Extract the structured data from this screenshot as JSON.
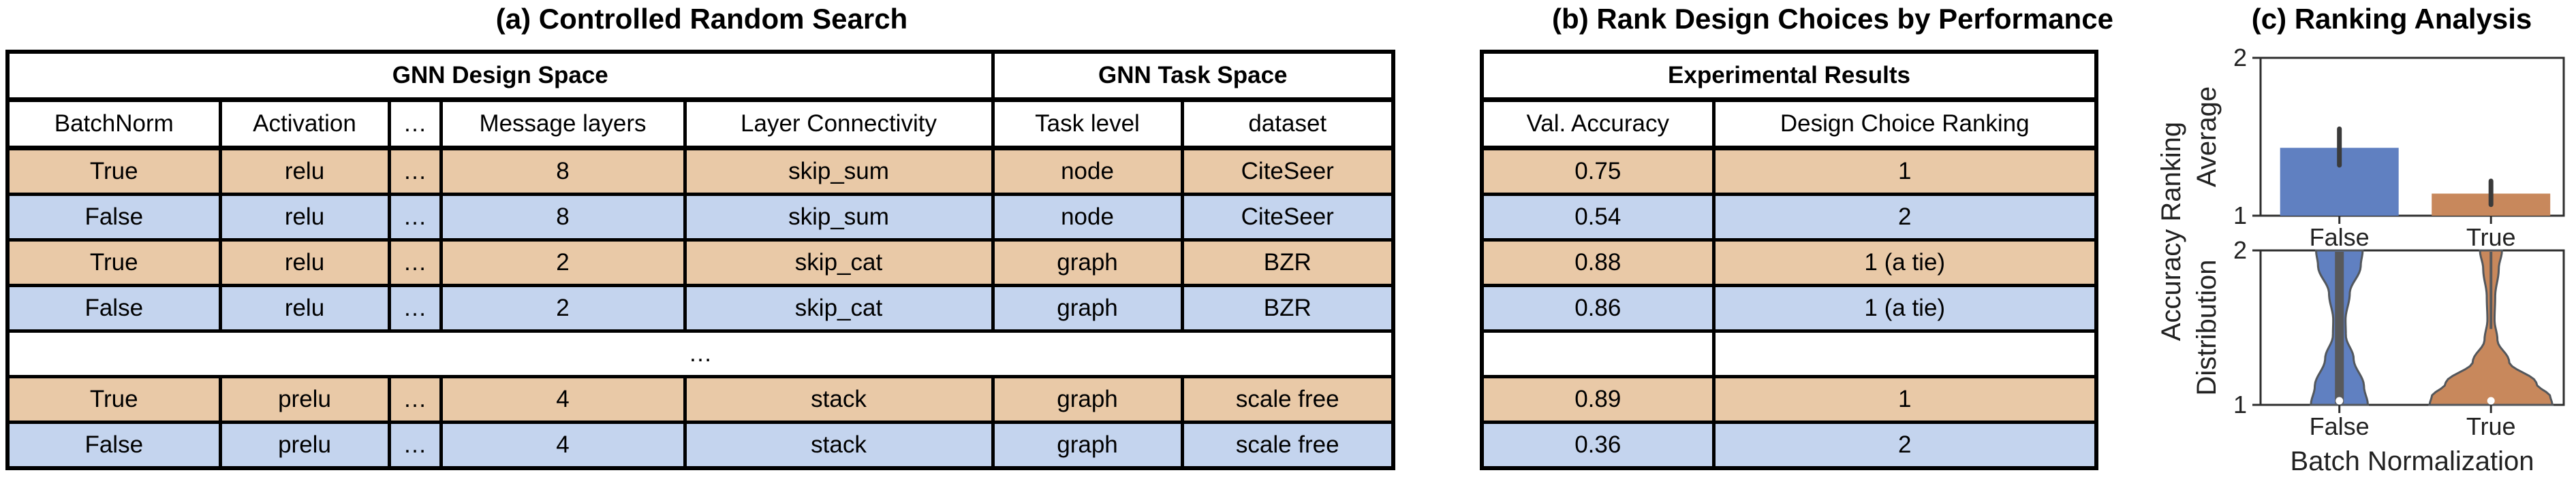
{
  "panel_a": {
    "title": "(a) Controlled Random Search",
    "table": {
      "group_headers": [
        {
          "label": "GNN Design Space",
          "colspan": 5
        },
        {
          "label": "GNN Task Space",
          "colspan": 2
        }
      ],
      "columns": [
        "BatchNorm",
        "Activation",
        "…",
        "Message layers",
        "Layer Connectivity",
        "Task level",
        "dataset"
      ],
      "rows": [
        {
          "tone": "tan",
          "cells": [
            "True",
            "relu",
            "…",
            "8",
            "skip_sum",
            "node",
            "CiteSeer"
          ]
        },
        {
          "tone": "blue",
          "cells": [
            "False",
            "relu",
            "…",
            "8",
            "skip_sum",
            "node",
            "CiteSeer"
          ]
        },
        {
          "tone": "tan",
          "cells": [
            "True",
            "relu",
            "…",
            "2",
            "skip_cat",
            "graph",
            "BZR"
          ]
        },
        {
          "tone": "blue",
          "cells": [
            "False",
            "relu",
            "…",
            "2",
            "skip_cat",
            "graph",
            "BZR"
          ]
        },
        {
          "tone": "white",
          "ellipsis": "…"
        },
        {
          "tone": "tan",
          "cells": [
            "True",
            "prelu",
            "…",
            "4",
            "stack",
            "graph",
            "scale free"
          ]
        },
        {
          "tone": "blue",
          "cells": [
            "False",
            "prelu",
            "…",
            "4",
            "stack",
            "graph",
            "scale free"
          ]
        }
      ]
    }
  },
  "panel_b": {
    "title": "(b) Rank Design Choices by Performance",
    "table": {
      "group_headers": [
        {
          "label": "Experimental Results",
          "colspan": 2
        }
      ],
      "columns": [
        "Val. Accuracy",
        "Design Choice Ranking"
      ],
      "rows": [
        {
          "tone": "tan",
          "cells": [
            "0.75",
            "1"
          ]
        },
        {
          "tone": "blue",
          "cells": [
            "0.54",
            "2"
          ]
        },
        {
          "tone": "tan",
          "cells": [
            "0.88",
            "1 (a tie)"
          ]
        },
        {
          "tone": "blue",
          "cells": [
            "0.86",
            "1 (a tie)"
          ]
        },
        {
          "tone": "white",
          "cells": [
            "",
            ""
          ]
        },
        {
          "tone": "tan",
          "cells": [
            "0.89",
            "1"
          ]
        },
        {
          "tone": "blue",
          "cells": [
            "0.36",
            "2"
          ]
        }
      ]
    }
  },
  "panel_c": {
    "title": "(c) Ranking Analysis",
    "shared_ylabel": "Accuracy Ranking"
  },
  "colors": {
    "row_tan": "#e9c9a7",
    "row_blue": "#c4d4ee",
    "bar_blue": "#6080c1",
    "bar_orange": "#c8885c",
    "error_bar": "#3a3a3a",
    "spine": "#2e2e2e",
    "violin_stroke": "#53575c",
    "inner_bar": "#58595b"
  },
  "chart_data": [
    {
      "type": "bar",
      "title": "(c) Ranking Analysis (top subplot)",
      "categories": [
        "False",
        "True"
      ],
      "values": [
        1.43,
        1.14
      ],
      "error_bars": {
        "low": [
          1.32,
          1.07
        ],
        "high": [
          1.55,
          1.22
        ]
      },
      "xlabel": "",
      "ylabel": "Average",
      "ylabel_shared": "Accuracy Ranking",
      "ylim": [
        1,
        2
      ],
      "yticks": [
        1,
        2
      ],
      "grid": false,
      "legend": false,
      "bar_colors": [
        "#6080c1",
        "#c8885c"
      ]
    },
    {
      "type": "violin",
      "title": "(c) Ranking Analysis (bottom subplot)",
      "categories": [
        "False",
        "True"
      ],
      "xlabel": "Batch Normalization",
      "ylabel": "Distribution",
      "ylim": [
        1,
        2
      ],
      "yticks": [
        1,
        2
      ],
      "grid": false,
      "legend": false,
      "series": [
        {
          "name": "False",
          "color": "#6080c1",
          "distribution": "bimodal: ranks concentrated at both 1 and 2",
          "inner": "quartile-bar-full",
          "median_dot": true,
          "profile": [
            [
              0,
              0.36
            ],
            [
              0.1,
              0.33
            ],
            [
              0.28,
              0.16
            ],
            [
              0.45,
              0.095
            ],
            [
              0.55,
              0.1
            ],
            [
              0.7,
              0.22
            ],
            [
              0.88,
              0.38
            ],
            [
              1,
              0.44
            ]
          ]
        },
        {
          "name": "True",
          "color": "#c8885c",
          "distribution": "concentrated at rank 1, thin tail at rank 2",
          "inner": "thin-line-top",
          "median_dot": true,
          "profile": [
            [
              0,
              0.17
            ],
            [
              0.12,
              0.12
            ],
            [
              0.3,
              0.065
            ],
            [
              0.45,
              0.055
            ],
            [
              0.58,
              0.1
            ],
            [
              0.72,
              0.28
            ],
            [
              0.86,
              0.7
            ],
            [
              0.95,
              0.92
            ],
            [
              1,
              0.95
            ]
          ]
        }
      ]
    }
  ]
}
